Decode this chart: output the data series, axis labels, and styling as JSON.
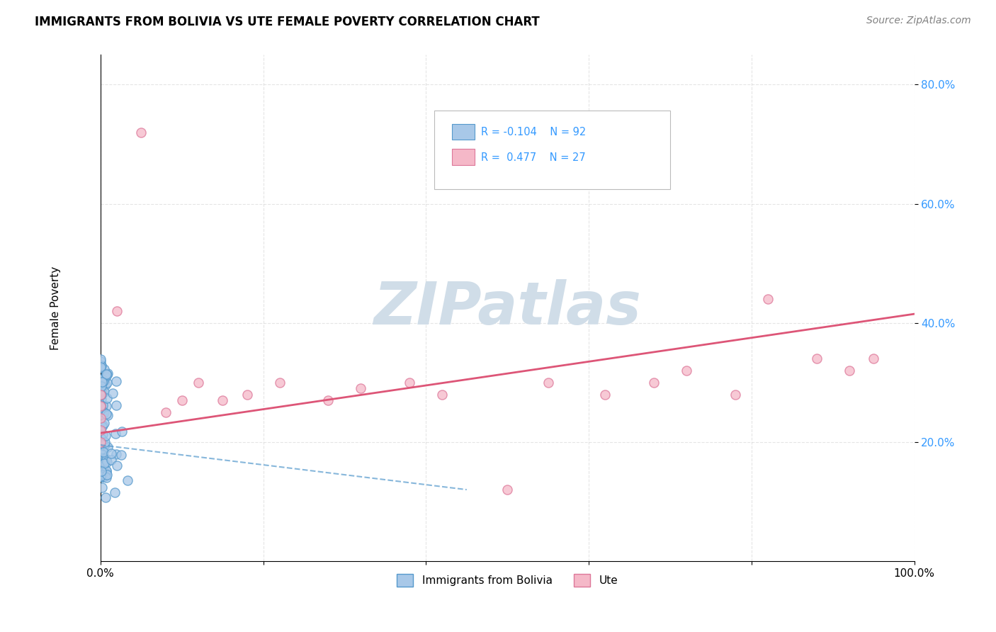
{
  "title": "IMMIGRANTS FROM BOLIVIA VS UTE FEMALE POVERTY CORRELATION CHART",
  "source": "Source: ZipAtlas.com",
  "ylabel": "Female Poverty",
  "xlim": [
    0.0,
    1.0
  ],
  "ylim": [
    0.0,
    0.85
  ],
  "xtick_labels": [
    "0.0%",
    "",
    "",
    "",
    "",
    "100.0%"
  ],
  "xtick_vals": [
    0.0,
    0.2,
    0.4,
    0.6,
    0.8,
    1.0
  ],
  "ytick_labels": [
    "20.0%",
    "40.0%",
    "60.0%",
    "80.0%"
  ],
  "ytick_vals": [
    0.2,
    0.4,
    0.6,
    0.8
  ],
  "legend_label1": "Immigrants from Bolivia",
  "legend_label2": "Ute",
  "color_blue": "#a8c8e8",
  "color_blue_edge": "#5599cc",
  "color_pink": "#f5b8c8",
  "color_pink_edge": "#dd7799",
  "color_blue_trend": "#5599cc",
  "color_pink_trend": "#dd5577",
  "watermark_color": "#d0dde8",
  "background_color": "#ffffff",
  "grid_color": "#cccccc",
  "blue_r": "R = -0.104",
  "blue_n": "N = 92",
  "pink_r": "R =  0.477",
  "pink_n": "N = 27",
  "pink_trend_x0": 0.0,
  "pink_trend_y0": 0.215,
  "pink_trend_x1": 1.0,
  "pink_trend_y1": 0.415,
  "blue_trend_x0": 0.0,
  "blue_trend_y0": 0.195,
  "blue_trend_x1": 0.45,
  "blue_trend_y1": 0.12
}
